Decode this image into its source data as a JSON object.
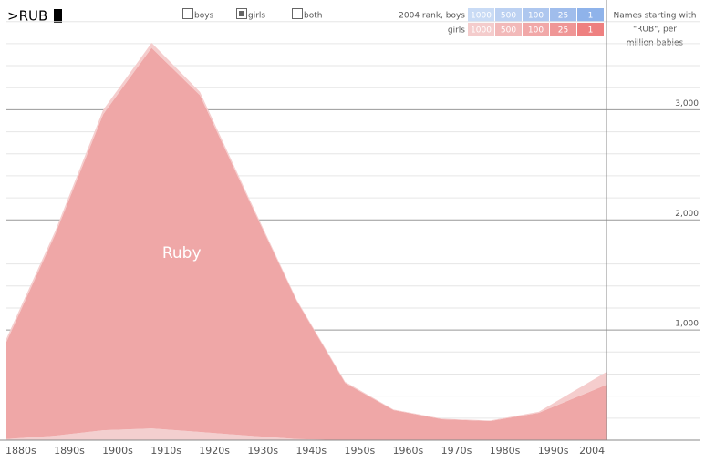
{
  "controls": {
    "query": ">RUB",
    "options": [
      "boys",
      "girls",
      "both"
    ],
    "selected": 1,
    "rank_rows": [
      {
        "label": "2004 rank, boys",
        "ranks": [
          "1000",
          "500",
          "100",
          "25",
          "1"
        ],
        "colors": [
          "#c9dbf5",
          "#bcd1f2",
          "#aec7ef",
          "#a0bdec",
          "#8fb3ea"
        ]
      },
      {
        "label": "girls",
        "ranks": [
          "1000",
          "500",
          "100",
          "25",
          "1"
        ],
        "colors": [
          "#f4cccc",
          "#f2b9b9",
          "#f1a8a8",
          "#ef9696",
          "#ee8080"
        ]
      }
    ],
    "note": [
      "Names starting with",
      "\"RUB\", per",
      "million babies"
    ]
  },
  "chart_data": {
    "type": "area",
    "stacked": true,
    "x": [
      1880,
      1890,
      1900,
      1910,
      1920,
      1930,
      1940,
      1950,
      1960,
      1970,
      1980,
      1990,
      2004
    ],
    "xlim": [
      1880,
      2004
    ],
    "xticks": [
      {
        "value": 1883,
        "label": "1880s"
      },
      {
        "value": 1893,
        "label": "1890s"
      },
      {
        "value": 1903,
        "label": "1900s"
      },
      {
        "value": 1913,
        "label": "1910s"
      },
      {
        "value": 1923,
        "label": "1920s"
      },
      {
        "value": 1933,
        "label": "1930s"
      },
      {
        "value": 1943,
        "label": "1940s"
      },
      {
        "value": 1953,
        "label": "1950s"
      },
      {
        "value": 1963,
        "label": "1960s"
      },
      {
        "value": 1973,
        "label": "1970s"
      },
      {
        "value": 1983,
        "label": "1980s"
      },
      {
        "value": 1993,
        "label": "1990s"
      },
      {
        "value": 2001,
        "label": "2004"
      }
    ],
    "ylim": [
      0,
      3930
    ],
    "yticks": [
      {
        "value": 1000,
        "label": "1,000"
      },
      {
        "value": 2000,
        "label": "2,000"
      },
      {
        "value": 3000,
        "label": "3,000"
      }
    ],
    "minor_yticks": [
      200,
      400,
      600,
      800,
      1200,
      1400,
      1600,
      1800,
      2200,
      2400,
      2600,
      2800,
      3200,
      3400,
      3600,
      3800
    ],
    "series": [
      {
        "color": "#f3cfcf",
        "values": [
          10,
          40,
          90,
          107,
          74,
          41,
          10,
          0,
          0,
          0,
          0,
          0,
          0
        ]
      },
      {
        "name": "Ruby",
        "color": "#efa7a7",
        "values": [
          883,
          1820,
          2869,
          3455,
          3058,
          2149,
          1254,
          520,
          273,
          190,
          174,
          248,
          504
        ]
      },
      {
        "color": "#f5cdcd",
        "values": [
          30,
          30,
          40,
          45,
          30,
          20,
          10,
          10,
          5,
          5,
          5,
          10,
          116
        ]
      }
    ]
  }
}
